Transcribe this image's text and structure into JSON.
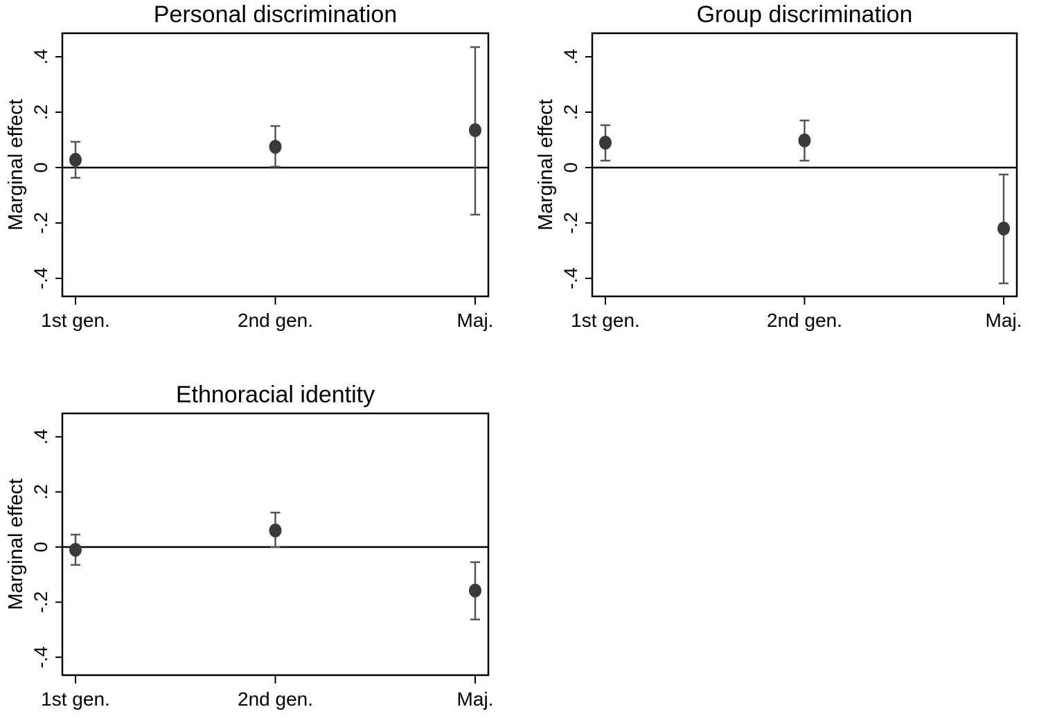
{
  "chart_data": [
    {
      "type": "scatter",
      "title": "Personal discrimination",
      "ylabel": "Marginal effect",
      "xlabel": "",
      "categories": [
        "1st gen.",
        "2nd gen.",
        "Maj."
      ],
      "estimates": [
        0.028,
        0.075,
        0.135
      ],
      "ci_low": [
        -0.037,
        0.003,
        -0.17
      ],
      "ci_high": [
        0.093,
        0.15,
        0.435
      ],
      "yticks": [
        0.4,
        0.2,
        0,
        -0.2,
        -0.4
      ],
      "ytick_labels": [
        ".4",
        ".2",
        "0",
        "-.2",
        "-.4"
      ],
      "ylim": [
        -0.465,
        0.485
      ],
      "reference_line": 0
    },
    {
      "type": "scatter",
      "title": "Group discrimination",
      "ylabel": "Marginal effect",
      "xlabel": "",
      "categories": [
        "1st gen.",
        "2nd gen.",
        "Maj."
      ],
      "estimates": [
        0.09,
        0.098,
        -0.22
      ],
      "ci_low": [
        0.025,
        0.025,
        -0.418
      ],
      "ci_high": [
        0.153,
        0.17,
        -0.025
      ],
      "yticks": [
        0.4,
        0.2,
        0,
        -0.2,
        -0.4
      ],
      "ytick_labels": [
        ".4",
        ".2",
        "0",
        "-.2",
        "-.4"
      ],
      "ylim": [
        -0.465,
        0.485
      ],
      "reference_line": 0
    },
    {
      "type": "scatter",
      "title": "Ethnoracial identity",
      "ylabel": "Marginal effect",
      "xlabel": "",
      "categories": [
        "1st gen.",
        "2nd gen.",
        "Maj."
      ],
      "estimates": [
        -0.01,
        0.06,
        -0.158
      ],
      "ci_low": [
        -0.065,
        0.0,
        -0.263
      ],
      "ci_high": [
        0.045,
        0.125,
        -0.055
      ],
      "yticks": [
        0.4,
        0.2,
        0,
        -0.2,
        -0.4
      ],
      "ytick_labels": [
        ".4",
        ".2",
        "0",
        "-.2",
        "-.4"
      ],
      "ylim": [
        -0.465,
        0.485
      ],
      "reference_line": 0
    }
  ],
  "colors": {
    "marker": "#3a3a3a",
    "errorbar": "#555555",
    "axis": "#000000"
  }
}
